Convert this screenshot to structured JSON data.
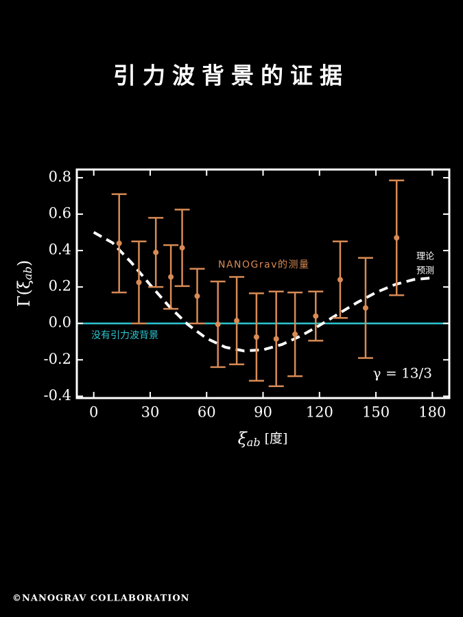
{
  "title": "引力波背景的证据",
  "credit": "©NANOGRAV COLLABORATION",
  "chart_data": {
    "type": "errorbar",
    "y_label": [
      "Γ(ξ",
      "ab",
      ")"
    ],
    "x_label": [
      "ξ",
      "ab",
      " [度]"
    ],
    "xlim": [
      -9,
      189
    ],
    "ylim": [
      -0.41,
      0.845
    ],
    "xticks": [
      0,
      30,
      60,
      90,
      120,
      150,
      180
    ],
    "yticks": [
      -0.4,
      -0.2,
      {
        "value": 0,
        "label": "0.0"
      },
      0.2,
      0.4,
      0.6,
      0.8
    ],
    "series": [
      {
        "name": "NANOGrav的测量",
        "color": "#d98b55",
        "x": [
          13.5,
          24,
          33,
          41,
          47,
          55,
          66,
          76,
          86.5,
          97,
          107,
          118,
          131,
          144.5,
          161
        ],
        "values": [
          0.44,
          0.225,
          0.39,
          0.255,
          0.415,
          0.15,
          -0.005,
          0.015,
          -0.075,
          -0.085,
          -0.06,
          0.04,
          0.24,
          0.085,
          0.47
        ],
        "errors": [
          0.27,
          0.225,
          0.19,
          0.175,
          0.21,
          0.15,
          0.235,
          0.24,
          0.24,
          0.26,
          0.23,
          0.135,
          0.21,
          0.275,
          0.315
        ]
      },
      {
        "name": [
          "理论",
          "预测"
        ],
        "color": "#ffffff",
        "dashed": true,
        "x": [
          0,
          10,
          20,
          30,
          40,
          50,
          60,
          70,
          80,
          90,
          100,
          110,
          120,
          130,
          140,
          150,
          160,
          170,
          180
        ],
        "values": [
          0.5,
          0.4425,
          0.334,
          0.2117,
          0.0941,
          -0.0061,
          -0.0824,
          -0.131,
          -0.1511,
          -0.1449,
          -0.1159,
          -0.0694,
          -0.0112,
          0.0522,
          0.1144,
          0.1697,
          0.2129,
          0.2405,
          0.25
        ]
      }
    ],
    "reference_line": {
      "name": "没有引力波背景",
      "value": 0,
      "color": "#2cc6d0"
    },
    "annotation": "γ = 13/3"
  }
}
